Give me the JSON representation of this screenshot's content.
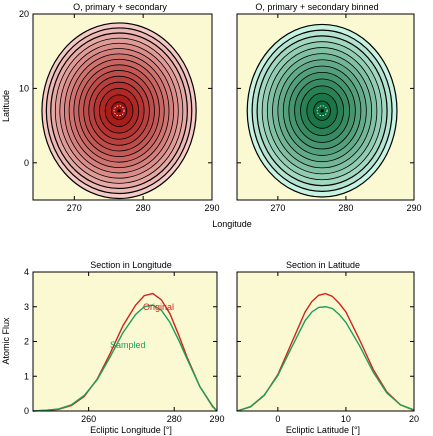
{
  "page": {
    "shared_xlabel_top": "Longitude"
  },
  "colors": {
    "background": "#fbf9d2",
    "red_line": "#d2231b",
    "green_line": "#1aa05a",
    "red_fill_outer": "#f5c9c5",
    "red_fill_inner": "#a3100e",
    "green_fill_outer": "#c7f3e3",
    "green_fill_inner": "#0d6b3b"
  },
  "chart_data": [
    {
      "type": "heatmap",
      "variant": "contour",
      "title": "O, primary + secondary",
      "xlabel": "Longitude",
      "ylabel": "Latitude",
      "xlim": [
        264,
        290
      ],
      "ylim": [
        -5,
        20
      ],
      "xticks": [
        270,
        280,
        290
      ],
      "yticks": [
        0,
        10,
        20
      ],
      "center": [
        276.5,
        7
      ],
      "half_widths_data": [
        11.2,
        11.8
      ],
      "levels": 15,
      "colormap": "red"
    },
    {
      "type": "heatmap",
      "variant": "contour",
      "title": "O, primary + secondary binned",
      "xlabel": "Longitude",
      "ylabel": "",
      "xlim": [
        264,
        290
      ],
      "ylim": [
        -5,
        20
      ],
      "xticks": [
        270,
        280,
        290
      ],
      "yticks": [
        0,
        10,
        20
      ],
      "center": [
        276.5,
        7
      ],
      "half_widths_data": [
        11.0,
        11.6
      ],
      "levels": 13,
      "colormap": "green"
    },
    {
      "type": "line",
      "title": "Section in Longitude",
      "xlabel": "Ecliptic Longitude [°]",
      "ylabel": "Atomic Flux",
      "xlim": [
        247,
        290
      ],
      "ylim": [
        0,
        4
      ],
      "xticks": [
        260,
        280,
        290
      ],
      "yticks": [
        0,
        1,
        2,
        3,
        4
      ],
      "series": [
        {
          "name": "Original",
          "color": "#d2231b",
          "x": [
            247,
            250,
            253,
            256,
            259,
            262,
            265,
            268,
            271,
            273,
            275,
            277,
            279,
            281,
            283,
            286,
            289,
            290
          ],
          "y": [
            0.0,
            0.02,
            0.05,
            0.16,
            0.42,
            0.92,
            1.65,
            2.45,
            3.05,
            3.32,
            3.38,
            3.2,
            2.8,
            2.2,
            1.55,
            0.7,
            0.12,
            0.0
          ]
        },
        {
          "name": "Sampled",
          "color": "#1aa05a",
          "x": [
            247,
            250,
            253,
            256,
            259,
            262,
            265,
            268,
            271,
            273,
            275,
            277,
            279,
            281,
            283,
            286,
            289,
            290
          ],
          "y": [
            0.0,
            0.02,
            0.06,
            0.18,
            0.45,
            0.9,
            1.55,
            2.25,
            2.78,
            3.0,
            3.05,
            2.9,
            2.55,
            2.05,
            1.5,
            0.7,
            0.14,
            0.0
          ]
        }
      ]
    },
    {
      "type": "line",
      "title": "Section in Latitude",
      "xlabel": "Ecliptic Latitude [°]",
      "ylabel": "",
      "xlim": [
        -6,
        20
      ],
      "ylim": [
        0,
        4
      ],
      "xticks": [
        0,
        10,
        20
      ],
      "yticks": [
        0,
        1,
        2,
        3,
        4
      ],
      "series": [
        {
          "name": "",
          "color": "#d2231b",
          "x": [
            -6,
            -4,
            -2,
            0,
            2,
            4,
            5,
            6,
            7,
            8,
            9,
            10,
            12,
            14,
            16,
            18,
            20
          ],
          "y": [
            0.0,
            0.12,
            0.45,
            1.05,
            1.95,
            2.85,
            3.15,
            3.33,
            3.38,
            3.3,
            3.1,
            2.85,
            2.05,
            1.2,
            0.55,
            0.18,
            0.02
          ]
        },
        {
          "name": "",
          "color": "#1aa05a",
          "x": [
            -6,
            -4,
            -2,
            0,
            2,
            4,
            5,
            6,
            7,
            8,
            9,
            10,
            12,
            14,
            16,
            18,
            20
          ],
          "y": [
            0.0,
            0.13,
            0.46,
            1.02,
            1.82,
            2.6,
            2.85,
            2.98,
            3.0,
            2.95,
            2.78,
            2.55,
            1.88,
            1.12,
            0.52,
            0.18,
            0.03
          ]
        }
      ]
    }
  ],
  "annotations": {
    "original_label": "Original",
    "sampled_label": "Sampled"
  }
}
